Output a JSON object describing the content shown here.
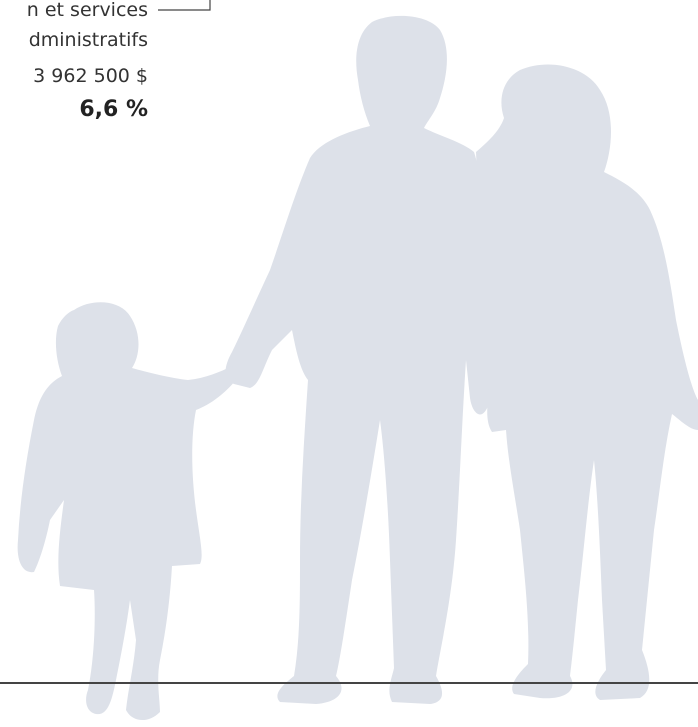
{
  "label": {
    "line1": "n et services",
    "line2": "dministratifs",
    "amount": "3 962 500 $",
    "percent": "6,6 %"
  }
}
